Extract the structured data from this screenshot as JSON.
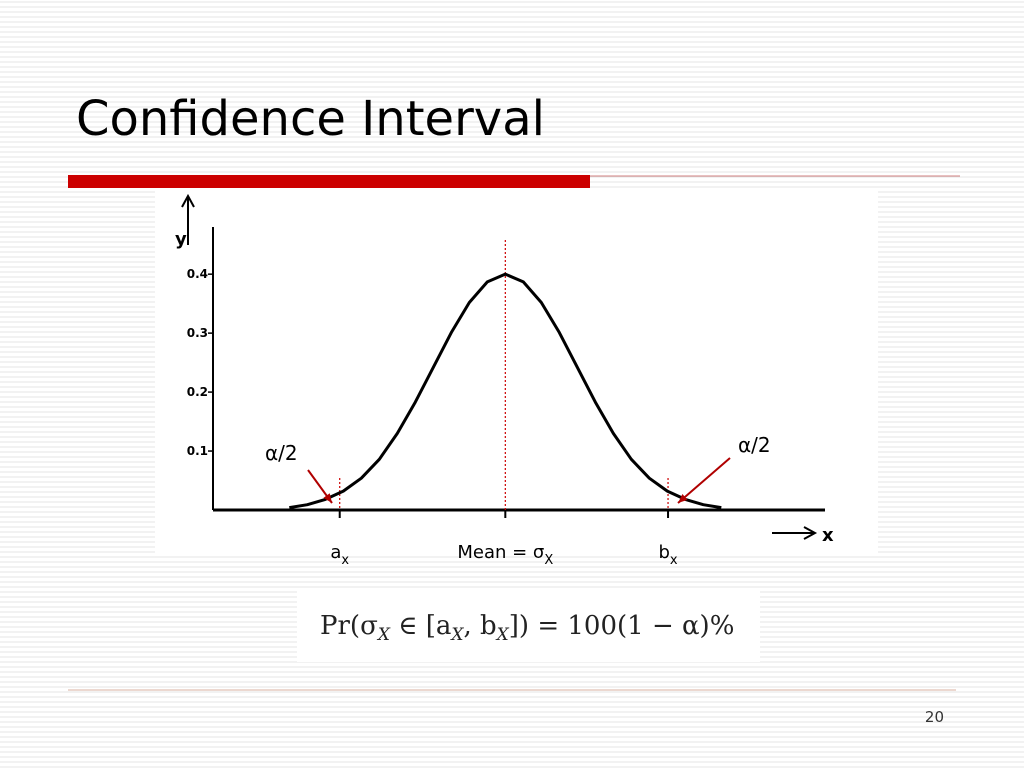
{
  "slide": {
    "title": "Confidence Interval",
    "page_number": "20",
    "formula": [
      "Pr(σ",
      "X",
      " ∈ [a",
      "X",
      ", b",
      "X",
      "]) = 100(1 − α)%"
    ]
  },
  "chart_data": {
    "type": "line",
    "y_label": "y",
    "x_label": "x",
    "x": [
      -3,
      -2.75,
      -2.5,
      -2.25,
      -2,
      -1.75,
      -1.5,
      -1.25,
      -1,
      -0.75,
      -0.5,
      -0.25,
      0,
      0.25,
      0.5,
      0.75,
      1,
      1.25,
      1.5,
      1.75,
      2,
      2.25,
      2.5,
      2.75,
      3
    ],
    "series": [
      {
        "color": "#000000",
        "values": [
          0.004,
          0.009,
          0.018,
          0.032,
          0.054,
          0.086,
          0.13,
          0.183,
          0.242,
          0.301,
          0.352,
          0.387,
          0.4,
          0.387,
          0.352,
          0.301,
          0.242,
          0.183,
          0.13,
          0.086,
          0.054,
          0.032,
          0.018,
          0.009,
          0.004
        ]
      }
    ],
    "xlim": [
      -4.06,
      4.44
    ],
    "ylim": [
      0,
      0.48
    ],
    "yticks": [
      0.1,
      0.2,
      0.3,
      0.4
    ],
    "xticks": [
      {
        "value": -2.3,
        "label": "a",
        "subscript": "x"
      },
      {
        "value": 0,
        "label": "Mean = σ",
        "subscript": "X"
      },
      {
        "value": 2.26,
        "label": "b",
        "subscript": "x"
      }
    ],
    "annotations": [
      "α/2",
      "α/2"
    ],
    "marker_line_color": "#cc0000"
  }
}
